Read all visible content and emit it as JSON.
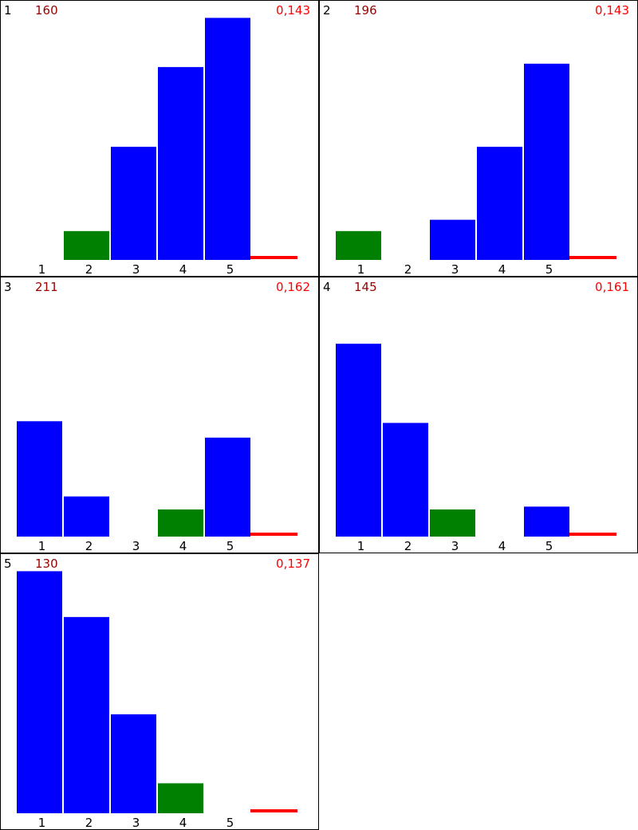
{
  "colors": {
    "bar": "#0000ff",
    "highlight_bar": "#008000",
    "ref_line": "#ff0000",
    "count_text": "#990000",
    "stat_text": "#ff0000",
    "label_text": "#000000"
  },
  "chart_data": [
    {
      "type": "bar",
      "panel_id": "1",
      "count": "160",
      "stat": "0,143",
      "categories": [
        "1",
        "2",
        "3",
        "4",
        "5"
      ],
      "values": [
        0,
        0.051,
        0.2,
        0.341,
        0.428
      ],
      "highlight_index": 1,
      "reference_value": 0.143,
      "ylim": [
        0,
        0.43
      ]
    },
    {
      "type": "bar",
      "panel_id": "2",
      "count": "196",
      "stat": "0,143",
      "categories": [
        "1",
        "2",
        "3",
        "4",
        "5"
      ],
      "values": [
        0.051,
        0,
        0.071,
        0.2,
        0.347
      ],
      "highlight_index": 0,
      "reference_value": 0.143,
      "ylim": [
        0,
        0.43
      ]
    },
    {
      "type": "bar",
      "panel_id": "3",
      "count": "211",
      "stat": "0,162",
      "categories": [
        "1",
        "2",
        "3",
        "4",
        "5"
      ],
      "values": [
        0.204,
        0.071,
        0,
        0.048,
        0.175
      ],
      "highlight_index": 3,
      "reference_value": 0.162,
      "ylim": [
        0,
        0.43
      ]
    },
    {
      "type": "bar",
      "panel_id": "4",
      "count": "145",
      "stat": "0,161",
      "categories": [
        "1",
        "2",
        "3",
        "4",
        "5"
      ],
      "values": [
        0.341,
        0.201,
        0.048,
        0,
        0.053
      ],
      "highlight_index": 2,
      "reference_value": 0.161,
      "ylim": [
        0,
        0.43
      ]
    },
    {
      "type": "bar",
      "panel_id": "5",
      "count": "130",
      "stat": "0,137",
      "categories": [
        "1",
        "2",
        "3",
        "4",
        "5"
      ],
      "values": [
        0.428,
        0.347,
        0.175,
        0.053,
        0
      ],
      "highlight_index": 3,
      "reference_value": 0.137,
      "ylim": [
        0,
        0.43
      ]
    }
  ]
}
